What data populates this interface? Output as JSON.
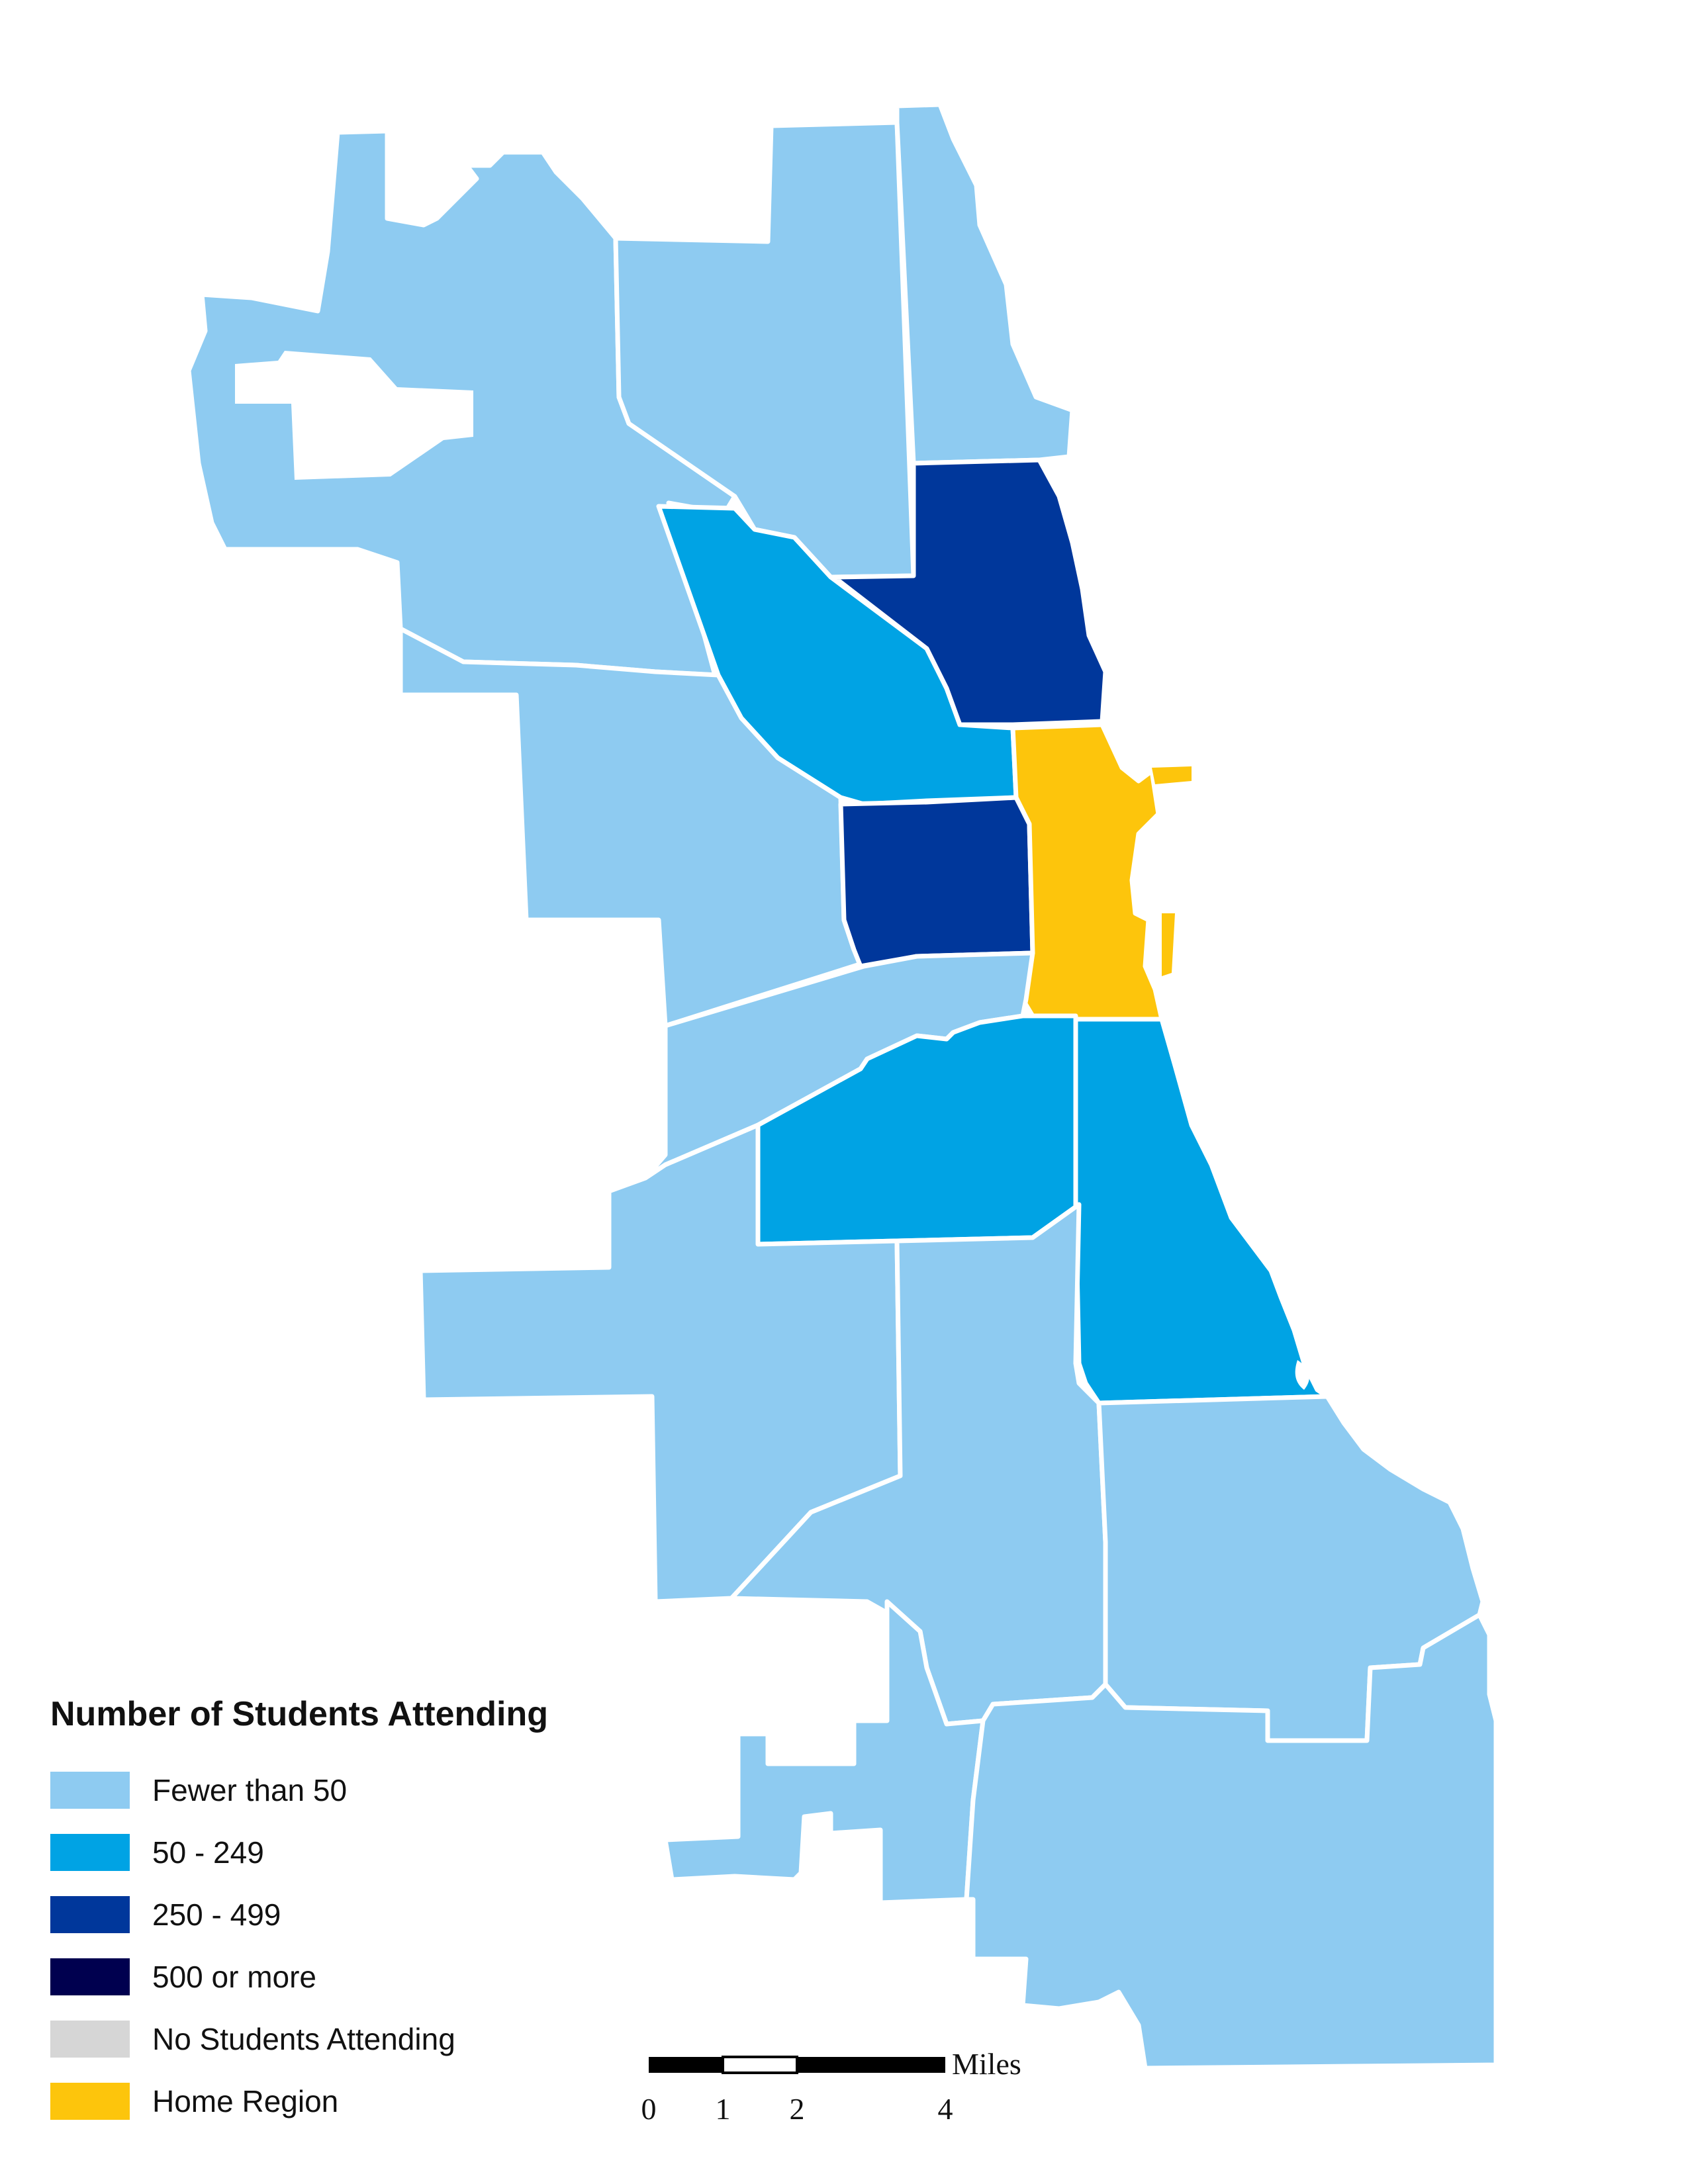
{
  "legend": {
    "title": "Number of Students Attending",
    "items": [
      {
        "label": "Fewer than 50",
        "color": "#8ecbf1"
      },
      {
        "label": "50 - 249",
        "color": "#00a3e4"
      },
      {
        "label": "250 - 499",
        "color": "#00379b"
      },
      {
        "label": "500 or more",
        "color": "#00004f"
      },
      {
        "label": "No Students Attending",
        "color": "#d6d6d6"
      },
      {
        "label": "Home Region",
        "color": "#fdc50c"
      }
    ]
  },
  "scale": {
    "unit": "Miles",
    "ticks": [
      "0",
      "1",
      "2",
      "4"
    ]
  },
  "regions": [
    {
      "id": "far-northwest",
      "category": "Fewer than 50"
    },
    {
      "id": "north-central",
      "category": "Fewer than 50"
    },
    {
      "id": "far-north-lakefront",
      "category": "Fewer than 50"
    },
    {
      "id": "northwest",
      "category": "Fewer than 50"
    },
    {
      "id": "west",
      "category": "Fewer than 50"
    },
    {
      "id": "west-central",
      "category": "50 - 249"
    },
    {
      "id": "north-lakefront",
      "category": "250 - 499"
    },
    {
      "id": "near-west",
      "category": "250 - 499"
    },
    {
      "id": "downtown",
      "category": "Home Region"
    },
    {
      "id": "lower-west",
      "category": "Fewer than 50"
    },
    {
      "id": "southwest-central",
      "category": "50 - 249"
    },
    {
      "id": "south-lakefront",
      "category": "50 - 249"
    },
    {
      "id": "southwest",
      "category": "Fewer than 50"
    },
    {
      "id": "south-central",
      "category": "Fewer than 50"
    },
    {
      "id": "southeast",
      "category": "Fewer than 50"
    },
    {
      "id": "far-southwest",
      "category": "Fewer than 50"
    },
    {
      "id": "far-south",
      "category": "Fewer than 50"
    },
    {
      "id": "far-southeast",
      "category": "Fewer than 50"
    }
  ]
}
